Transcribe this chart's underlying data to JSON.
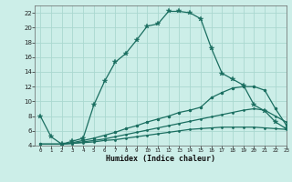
{
  "xlabel": "Humidex (Indice chaleur)",
  "bg_color": "#cceee8",
  "grid_color": "#aad8d0",
  "line_color": "#1a6e60",
  "xlim": [
    -0.5,
    23
  ],
  "ylim": [
    4,
    23
  ],
  "yticks": [
    4,
    6,
    8,
    10,
    12,
    14,
    16,
    18,
    20,
    22
  ],
  "xticks": [
    0,
    1,
    2,
    3,
    4,
    5,
    6,
    7,
    8,
    9,
    10,
    11,
    12,
    13,
    14,
    15,
    16,
    17,
    18,
    19,
    20,
    21,
    22,
    23
  ],
  "line1_x": [
    0,
    1,
    2,
    3,
    4,
    5,
    6,
    7,
    8,
    9,
    10,
    11,
    12,
    13,
    14,
    15,
    16,
    17,
    18,
    19,
    20,
    21,
    22,
    23
  ],
  "line1_y": [
    8.0,
    5.2,
    4.2,
    4.6,
    5.0,
    9.5,
    12.7,
    15.3,
    16.5,
    18.3,
    20.2,
    20.5,
    22.2,
    22.2,
    22.0,
    21.2,
    17.2,
    13.8,
    13.0,
    12.2,
    9.5,
    8.7,
    7.2,
    6.3
  ],
  "line2_x": [
    0,
    2,
    3,
    4,
    5,
    6,
    7,
    8,
    9,
    10,
    11,
    12,
    13,
    14,
    15,
    16,
    17,
    18,
    19,
    20,
    21,
    22,
    23
  ],
  "line2_y": [
    4.2,
    4.2,
    4.4,
    4.7,
    5.0,
    5.4,
    5.8,
    6.3,
    6.7,
    7.2,
    7.6,
    8.0,
    8.5,
    8.8,
    9.2,
    10.5,
    11.2,
    11.8,
    12.0,
    12.0,
    11.5,
    9.0,
    6.8
  ],
  "line3_x": [
    0,
    2,
    3,
    4,
    5,
    6,
    7,
    8,
    9,
    10,
    11,
    12,
    13,
    14,
    15,
    16,
    17,
    18,
    19,
    20,
    21,
    22,
    23
  ],
  "line3_y": [
    4.2,
    4.2,
    4.3,
    4.5,
    4.7,
    4.9,
    5.2,
    5.5,
    5.8,
    6.1,
    6.4,
    6.7,
    7.0,
    7.3,
    7.6,
    7.9,
    8.2,
    8.5,
    8.8,
    9.0,
    8.8,
    8.0,
    7.2
  ],
  "line4_x": [
    0,
    2,
    3,
    4,
    5,
    6,
    7,
    8,
    9,
    10,
    11,
    12,
    13,
    14,
    15,
    16,
    17,
    18,
    19,
    20,
    21,
    22,
    23
  ],
  "line4_y": [
    4.2,
    4.2,
    4.3,
    4.4,
    4.5,
    4.7,
    4.8,
    5.0,
    5.2,
    5.4,
    5.6,
    5.8,
    6.0,
    6.2,
    6.3,
    6.4,
    6.5,
    6.5,
    6.5,
    6.5,
    6.4,
    6.3,
    6.2
  ]
}
